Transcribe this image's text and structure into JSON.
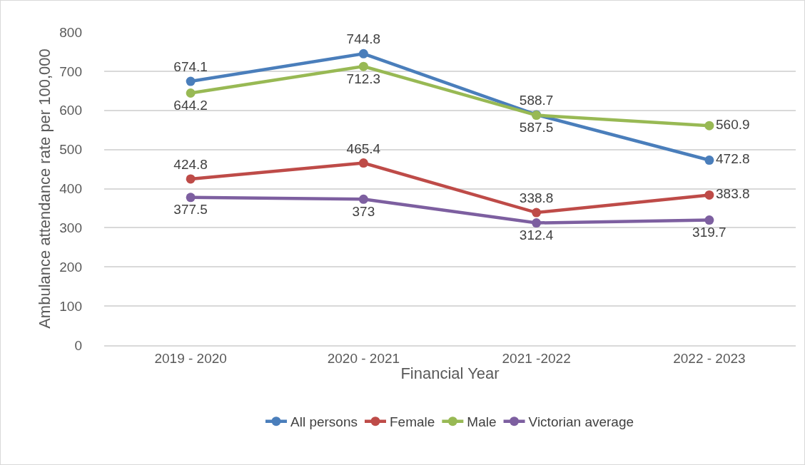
{
  "chart_data": {
    "type": "line",
    "xlabel": "Financial Year",
    "ylabel": "Ambulance attendance rate per 100,000",
    "categories": [
      "2019 - 2020",
      "2020 - 2021",
      "2021 -2022",
      "2022 - 2023"
    ],
    "series": [
      {
        "name": "All persons",
        "color": "#4a7ebb",
        "values": [
          674.1,
          744.8,
          588.7,
          472.8
        ]
      },
      {
        "name": "Female",
        "color": "#be4b48",
        "values": [
          424.8,
          465.4,
          338.8,
          383.8
        ]
      },
      {
        "name": "Male",
        "color": "#98b954",
        "values": [
          644.2,
          712.3,
          587.5,
          560.9
        ]
      },
      {
        "name": "Victorian average",
        "color": "#7d5fa0",
        "values": [
          377.5,
          373,
          312.4,
          319.7
        ]
      }
    ],
    "ylim": [
      0,
      800
    ],
    "yticks": [
      0,
      100,
      200,
      300,
      400,
      500,
      600,
      700,
      800
    ],
    "grid": "y",
    "legend": "bottom",
    "marker": "circle",
    "line_style": "solid",
    "data_labels": true
  }
}
